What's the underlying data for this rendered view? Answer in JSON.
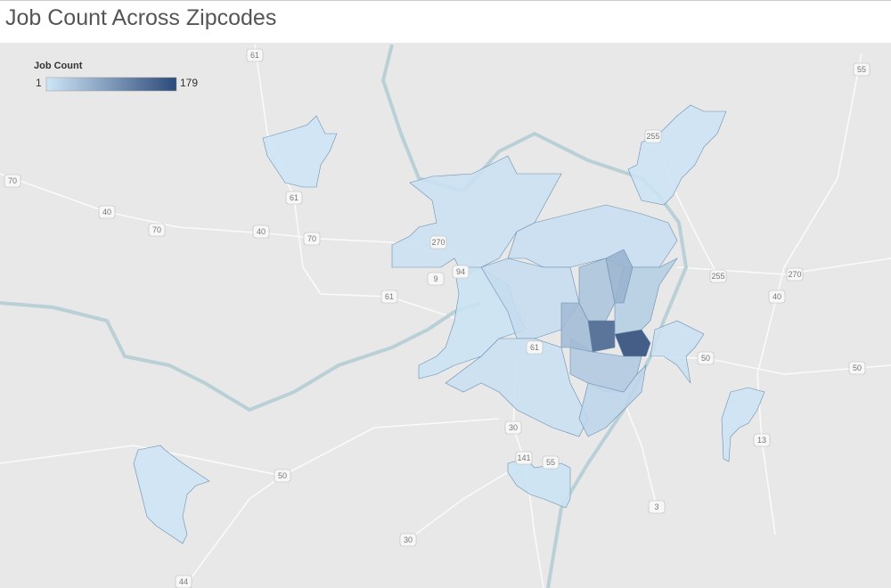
{
  "title": "Job Count Across Zipcodes",
  "legend": {
    "title": "Job Count",
    "min": 1,
    "max": 179
  },
  "zipcode_job_counts": [
    8,
    3,
    4,
    6,
    10,
    12,
    9,
    40,
    150,
    179,
    35,
    20,
    50,
    30,
    8,
    4,
    5,
    3,
    60
  ],
  "highway_labels": [
    "61",
    "70",
    "61",
    "40",
    "70",
    "40",
    "70",
    "270",
    "94",
    "9",
    "61",
    "61",
    "255",
    "255",
    "270",
    "40",
    "50",
    "50",
    "13",
    "30",
    "141",
    "55",
    "50",
    "3",
    "30",
    "44",
    "55"
  ]
}
